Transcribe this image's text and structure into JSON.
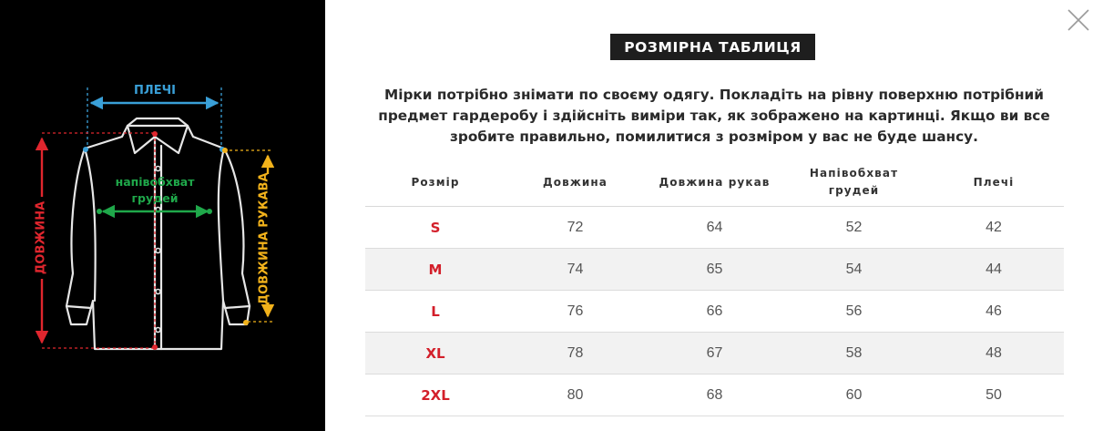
{
  "illustration": {
    "shoulders_label": "ПЛЕЧІ",
    "chest_label_line1": "напівобхват",
    "chest_label_line2": "грудей",
    "length_label": "ДОВЖИНА",
    "sleeve_label": "ДОВЖИНА РУКАВА",
    "colors": {
      "shoulders": "#3aa0d8",
      "chest": "#1fa84a",
      "length": "#e0262e",
      "sleeve": "#f2b21b"
    }
  },
  "dialog": {
    "close_icon": "close-icon",
    "title": "РОЗМІРНА ТАБЛИЦЯ",
    "intro_lines": [
      "Мірки потрібно знімати по своєму одягу. Покладіть на рівну поверхню потрібний",
      "предмет гардеробу і здійсніть виміри так, як зображено на картинці. Якщо ви все",
      "зробите правильно, помилитися з розміром у вас не буде шансу."
    ]
  },
  "table": {
    "headers": [
      "Розмір",
      "Довжина",
      "Довжина рукав",
      "Напівобхват грудей",
      "Плечі"
    ],
    "rows": [
      [
        "S",
        "72",
        "64",
        "52",
        "42"
      ],
      [
        "M",
        "74",
        "65",
        "54",
        "44"
      ],
      [
        "L",
        "76",
        "66",
        "56",
        "46"
      ],
      [
        "XL",
        "78",
        "67",
        "58",
        "48"
      ],
      [
        "2XL",
        "80",
        "68",
        "60",
        "50"
      ]
    ]
  }
}
